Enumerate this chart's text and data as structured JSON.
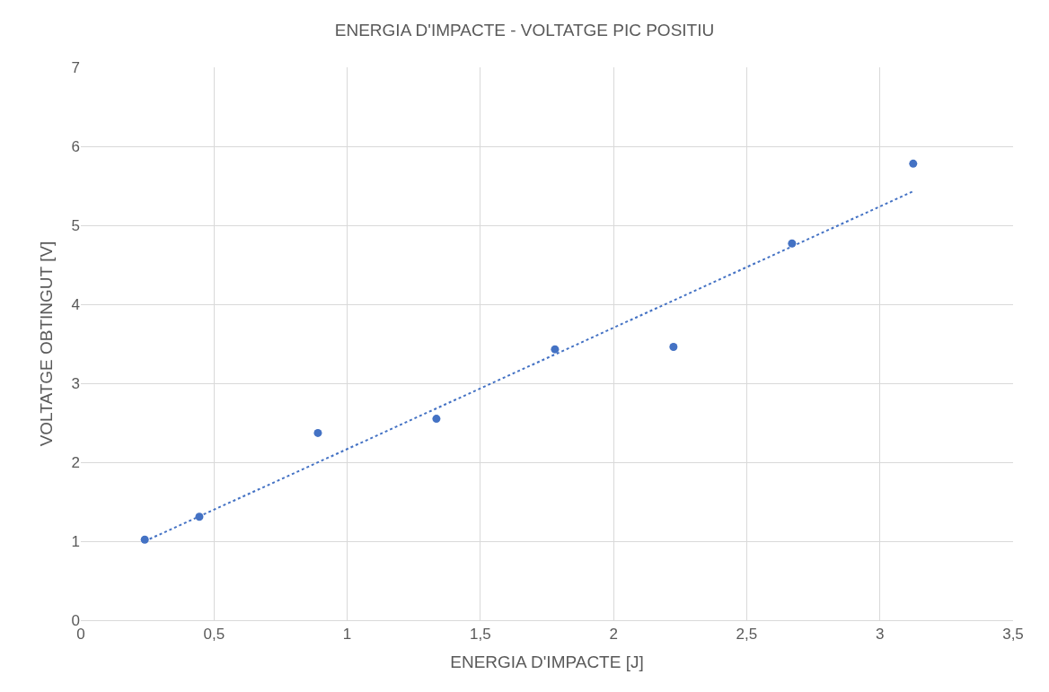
{
  "chart_data": {
    "type": "scatter",
    "title": "ENERGIA D'IMPACTE - VOLTATGE PIC POSITIU",
    "xlabel": "ENERGIA D'IMPACTE [J]",
    "ylabel": "VOLTATGE OBTINGUT [V]",
    "xlim": [
      0,
      3.5
    ],
    "xticks": [
      0,
      {
        "value": 0.5,
        "label": "0,5"
      },
      1,
      {
        "value": 1.5,
        "label": "1,5"
      },
      2,
      {
        "value": 2.5,
        "label": "2,5"
      },
      3,
      {
        "value": 3.5,
        "label": "3,5"
      }
    ],
    "ylim": [
      0,
      7
    ],
    "yticks": [
      0,
      1,
      2,
      3,
      4,
      5,
      6,
      7
    ],
    "grid": true,
    "series": [
      {
        "color": "#4472c4",
        "marker": "circle",
        "x": [
          0.24,
          0.445,
          0.89,
          1.335,
          1.78,
          2.225,
          2.67,
          3.125
        ],
        "values": [
          1.02,
          1.31,
          2.37,
          2.55,
          3.43,
          3.46,
          4.77,
          5.78
        ]
      },
      {
        "type": "line",
        "color": "#4472c4",
        "line_style": "dotted",
        "marker": "none",
        "x": [
          0.24,
          3.125
        ],
        "values": [
          1.0,
          5.43
        ]
      }
    ]
  }
}
